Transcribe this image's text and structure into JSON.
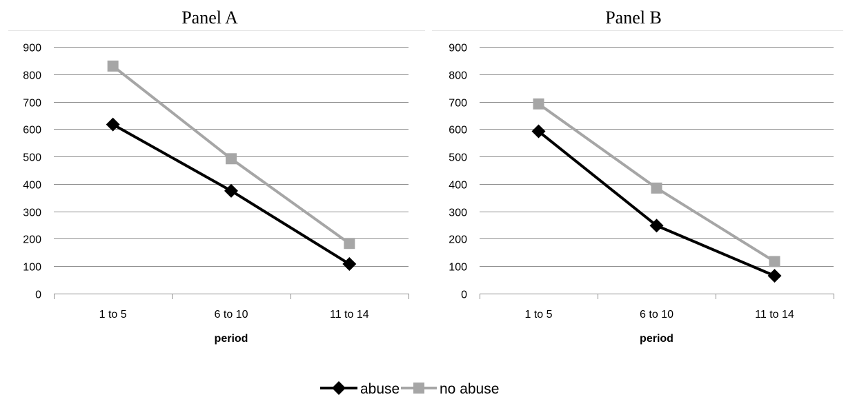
{
  "chart_data": [
    {
      "type": "line",
      "title": "Panel A",
      "xlabel": "period",
      "ylabel": "",
      "categories": [
        "1 to 5",
        "6 to 10",
        "11 to 14"
      ],
      "yticks": [
        "0",
        "100",
        "200",
        "300",
        "400",
        "500",
        "600",
        "700",
        "800",
        "900"
      ],
      "ylim": [
        0,
        900
      ],
      "grid": true,
      "series": [
        {
          "name": "abuse",
          "values": [
            617,
            375,
            108
          ],
          "color": "#000000",
          "marker": "diamond"
        },
        {
          "name": "no abuse",
          "values": [
            830,
            492,
            183
          ],
          "color": "#a6a6a6",
          "marker": "square"
        }
      ]
    },
    {
      "type": "line",
      "title": "Panel B",
      "xlabel": "period",
      "ylabel": "",
      "categories": [
        "1 to 5",
        "6 to 10",
        "11 to 14"
      ],
      "yticks": [
        "0",
        "100",
        "200",
        "300",
        "400",
        "500",
        "600",
        "700",
        "800",
        "900"
      ],
      "ylim": [
        0,
        900
      ],
      "grid": true,
      "series": [
        {
          "name": "abuse",
          "values": [
            592,
            248,
            65
          ],
          "color": "#000000",
          "marker": "diamond"
        },
        {
          "name": "no abuse",
          "values": [
            692,
            385,
            117
          ],
          "color": "#a6a6a6",
          "marker": "square"
        }
      ]
    }
  ],
  "legend": {
    "placement": "bottom-center",
    "items": [
      {
        "label": "abuse",
        "color": "#000000",
        "marker": "diamond"
      },
      {
        "label": "no abuse",
        "color": "#a6a6a6",
        "marker": "square"
      }
    ]
  }
}
